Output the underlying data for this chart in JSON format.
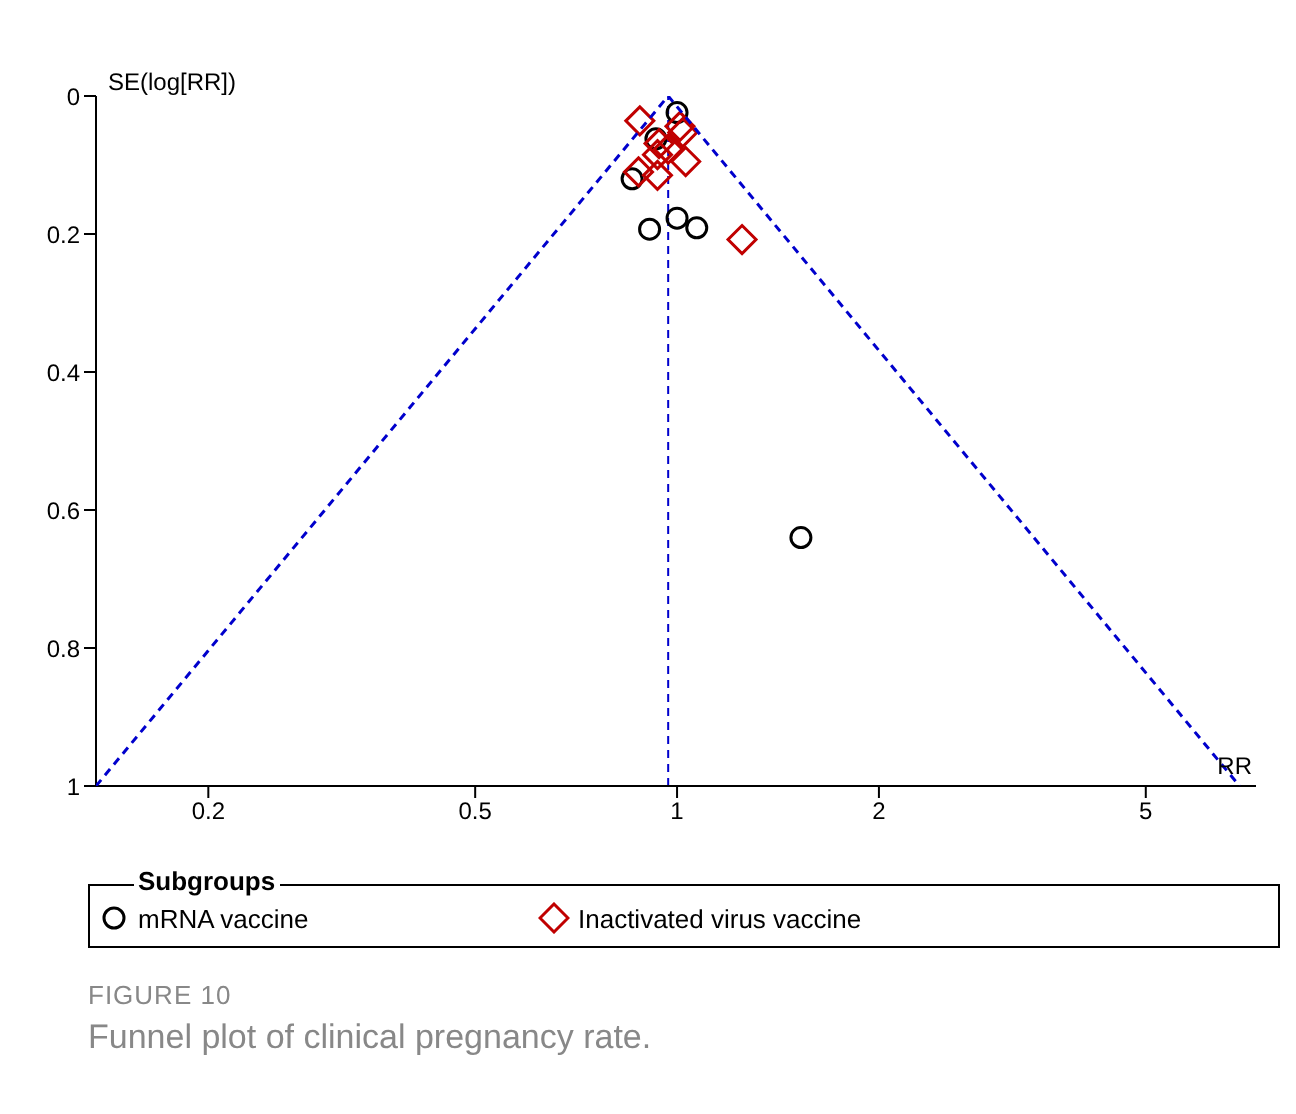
{
  "chart_data": {
    "type": "scatter",
    "title": "FIGURE 10",
    "subtitle": "Funnel plot of clinical pregnancy rate.",
    "xlabel": "RR",
    "ylabel": "SE(log[RR])",
    "legend_title": "Subgroups",
    "legend": "bottom",
    "log": "x",
    "xlim": [
      0.136,
      7.3
    ],
    "xticks": [
      0.2,
      0.5,
      1,
      2,
      5
    ],
    "ylim": [
      1,
      0
    ],
    "yticks": [
      0,
      0.2,
      0.4,
      0.6,
      0.8,
      1
    ],
    "ref_lines": [
      {
        "axis": "x",
        "value": 0.97,
        "color": "#0000cc",
        "line_style": "dashed"
      }
    ],
    "series": [
      {
        "name": "mRNA vaccine",
        "color": "#000000",
        "marker": "circle",
        "x": [
          1.0,
          0.93,
          0.857,
          0.91,
          1.0,
          1.07,
          1.53
        ],
        "values": [
          0.024,
          0.062,
          0.12,
          0.193,
          0.177,
          0.191,
          0.64
        ]
      },
      {
        "name": "Inactivated virus vaccine",
        "color": "#c00000",
        "marker": "diamond",
        "x": [
          0.88,
          1.01,
          1.02,
          0.94,
          0.97,
          0.935,
          1.03,
          0.876,
          0.935,
          1.25
        ],
        "values": [
          0.036,
          0.044,
          0.053,
          0.069,
          0.077,
          0.085,
          0.095,
          0.11,
          0.115,
          0.208
        ]
      },
      {
        "type": "line",
        "color": "#0000cc",
        "line_style": "dashed",
        "marker": "none",
        "x": [
          0.136,
          0.97,
          6.9
        ],
        "values": [
          1,
          0,
          1
        ]
      }
    ]
  }
}
